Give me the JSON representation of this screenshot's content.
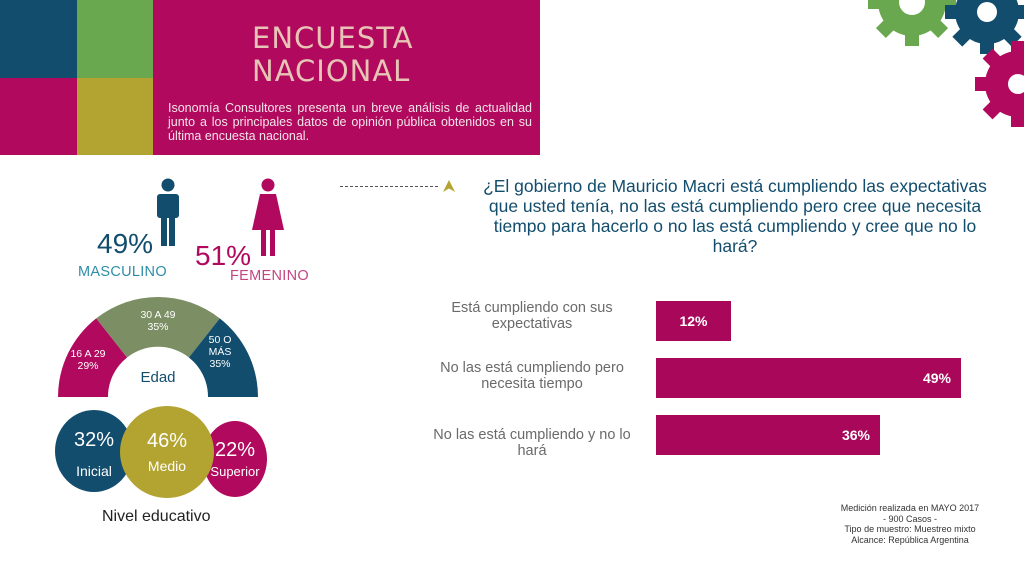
{
  "header": {
    "title_line1": "ENCUESTA",
    "title_line2": "NACIONAL",
    "description": "Isonomía Consultores presenta un breve análisis de actualidad junto a los principales datos de opinión pública obtenidos en su última encuesta nacional."
  },
  "gender": {
    "male": {
      "value": "49%",
      "label": "MASCULINO"
    },
    "female": {
      "value": "51%",
      "label": "FEMENINO"
    }
  },
  "age": {
    "title": "Edad",
    "segments": [
      {
        "label": "16 A 29",
        "value": "29%"
      },
      {
        "label": "30 A 49",
        "value": "35%"
      },
      {
        "label": "50 O MÁS",
        "value": "35%"
      }
    ]
  },
  "education": {
    "title": "Nivel educativo",
    "levels": [
      {
        "value": "32%",
        "label": "Inicial"
      },
      {
        "value": "46%",
        "label": "Medio"
      },
      {
        "value": "22%",
        "label": "Superior"
      }
    ]
  },
  "chart_data": {
    "type": "bar",
    "orientation": "horizontal",
    "title": "¿El gobierno de Mauricio Macri está cumpliendo las expectativas que usted tenía, no las está cumpliendo pero cree que necesita tiempo para hacerlo o no las está cumpliendo y cree que no lo hará?",
    "categories": [
      "Está cumpliendo con sus expectativas",
      "No las está cumpliendo pero necesita tiempo",
      "No las está cumpliendo y no lo hará"
    ],
    "values": [
      12,
      49,
      36
    ],
    "value_labels": [
      "12%",
      "49%",
      "36%"
    ],
    "xlim": [
      0,
      49
    ],
    "grid": false,
    "bar_color": "#a8075a"
  },
  "footnote": {
    "line1": "Medición realizada en MAYO 2017",
    "line2": "- 900 Casos -",
    "line3": "Tipo de muestro: Muestreo mixto",
    "line4": "Alcance: República Argentina"
  },
  "colors": {
    "magenta": "#b0095d",
    "teal": "#124d6d",
    "olive": "#b3a431",
    "sage": "#7c8e63",
    "green": "#6aa84f"
  },
  "icons": [
    "male-icon",
    "female-icon",
    "gear-icon",
    "arrow-icon"
  ]
}
